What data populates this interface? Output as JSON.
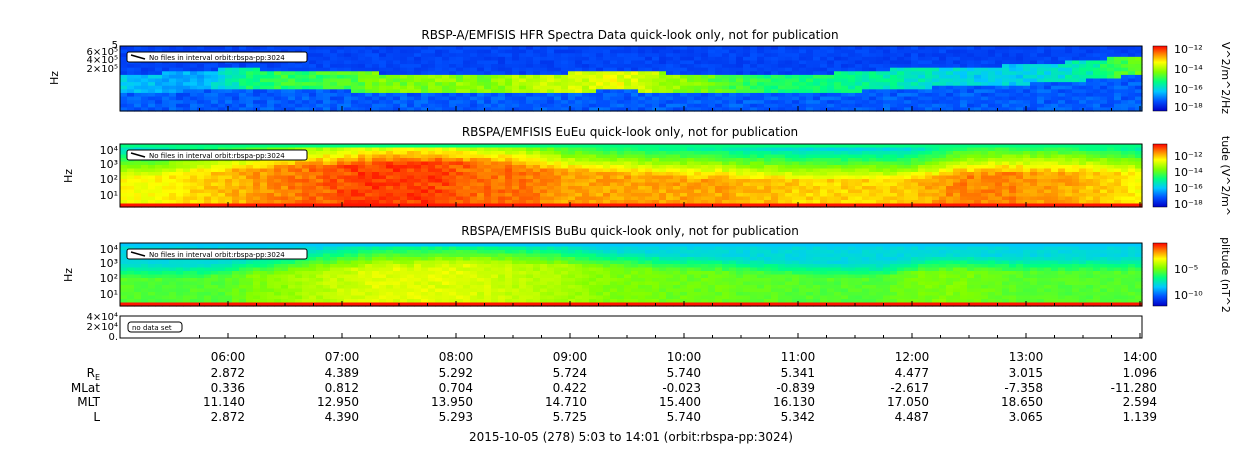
{
  "chart_data": [
    {
      "type": "heatmap",
      "title": "RBSP-A/EMFISIS  HFR Spectra Data quick-look only, not for publication",
      "ylabel": "Hz",
      "yticks": [
        "5",
        "6×10⁵",
        "4×10⁵",
        "2×10⁵"
      ],
      "legend": "No files in interval orbit:rbspa-pp:3024",
      "colorbar_label": "V^2/m^2/Hz",
      "colorbar_ticks": [
        "10⁻¹²",
        "10⁻¹⁴",
        "10⁻¹⁶",
        "10⁻¹⁸"
      ],
      "baseline": [
        0.55,
        0.55,
        0.6,
        0.62,
        0.65,
        0.65,
        0.62,
        0.62,
        0.62,
        0.6,
        0.58,
        0.57,
        0.56,
        0.55,
        0.55,
        0.55,
        0.56,
        0.58,
        0.6,
        0.62,
        0.6,
        0.58,
        0.55,
        0.55,
        0.55,
        0.55,
        0.56,
        0.58,
        0.6,
        0.63,
        0.65,
        0.66,
        0.67,
        0.68,
        0.7,
        0.72,
        0.75,
        0.78,
        0.82,
        0.85
      ],
      "intensity": [
        0.3,
        0.28,
        0.25,
        0.25,
        0.35,
        0.45,
        0.5,
        0.5,
        0.52,
        0.55,
        0.6,
        0.6,
        0.62,
        0.62,
        0.6,
        0.65,
        0.7,
        0.7,
        0.72,
        0.75,
        0.7,
        0.65,
        0.6,
        0.55,
        0.5,
        0.45,
        0.45,
        0.45,
        0.42,
        0.4,
        0.38,
        0.35,
        0.32,
        0.3,
        0.3,
        0.32,
        0.35,
        0.4,
        0.5,
        0.6
      ]
    },
    {
      "type": "heatmap",
      "title": "RBSPA/EMFISIS  EuEu quick-look only, not for publication",
      "ylabel": "Hz",
      "yticks": [
        "10⁴",
        "10³",
        "10²",
        "10¹"
      ],
      "legend": "No files in interval orbit:rbspa-pp:3024",
      "colorbar_label": "tude (V^2/m^",
      "colorbar_ticks": [
        "10⁻¹²",
        "10⁻¹⁴",
        "10⁻¹⁶",
        "10⁻¹⁸"
      ],
      "baseline": [
        0.5,
        0.5,
        0.52,
        0.55,
        0.58,
        0.6,
        0.62,
        0.64,
        0.65,
        0.66,
        0.68,
        0.7,
        0.7,
        0.7,
        0.68,
        0.66,
        0.62,
        0.58,
        0.55,
        0.52,
        0.5,
        0.48,
        0.46,
        0.45,
        0.44,
        0.43,
        0.42,
        0.42,
        0.42,
        0.42,
        0.42,
        0.45,
        0.5,
        0.52,
        0.54,
        0.55,
        0.55,
        0.55,
        0.55,
        0.55
      ],
      "intensity": [
        0.75,
        0.75,
        0.78,
        0.8,
        0.82,
        0.85,
        0.88,
        0.9,
        0.92,
        0.95,
        0.95,
        0.95,
        0.95,
        0.92,
        0.9,
        0.9,
        0.88,
        0.85,
        0.85,
        0.85,
        0.85,
        0.85,
        0.85,
        0.85,
        0.82,
        0.82,
        0.8,
        0.8,
        0.8,
        0.8,
        0.8,
        0.85,
        0.88,
        0.88,
        0.88,
        0.85,
        0.85,
        0.82,
        0.8,
        0.75
      ]
    },
    {
      "type": "heatmap",
      "title": "RBSPA/EMFISIS  BuBu quick-look only, not for publication",
      "ylabel": "Hz",
      "yticks": [
        "10⁴",
        "10³",
        "10²",
        "10¹"
      ],
      "legend": "No files in interval orbit:rbspa-pp:3024",
      "colorbar_label": "plitude (nT^2",
      "colorbar_ticks": [
        "10⁻⁵",
        "10⁻¹⁰"
      ],
      "baseline": [
        0.45,
        0.45,
        0.45,
        0.45,
        0.48,
        0.5,
        0.52,
        0.55,
        0.58,
        0.6,
        0.62,
        0.62,
        0.64,
        0.65,
        0.66,
        0.66,
        0.65,
        0.64,
        0.62,
        0.6,
        0.58,
        0.56,
        0.55,
        0.54,
        0.52,
        0.5,
        0.48,
        0.46,
        0.45,
        0.45,
        0.5,
        0.55,
        0.55,
        0.55,
        0.55,
        0.55,
        0.55,
        0.55,
        0.55,
        0.55
      ],
      "intensity": [
        0.55,
        0.55,
        0.55,
        0.55,
        0.55,
        0.6,
        0.62,
        0.65,
        0.68,
        0.7,
        0.72,
        0.72,
        0.72,
        0.72,
        0.7,
        0.68,
        0.66,
        0.65,
        0.62,
        0.6,
        0.6,
        0.58,
        0.58,
        0.58,
        0.56,
        0.56,
        0.55,
        0.55,
        0.55,
        0.55,
        0.58,
        0.6,
        0.6,
        0.58,
        0.56,
        0.55,
        0.55,
        0.55,
        0.55,
        0.55
      ]
    },
    {
      "type": "line",
      "title": "",
      "ylabel": "",
      "yticks": [
        "4×10⁴",
        "2×10⁴",
        "0."
      ],
      "legend": "no data set",
      "values": []
    }
  ],
  "time_axis": {
    "ticks": [
      "06:00",
      "07:00",
      "08:00",
      "09:00",
      "10:00",
      "11:00",
      "12:00",
      "13:00",
      "14:00"
    ],
    "range": [
      "05:03",
      "14:01"
    ]
  },
  "ephemeris": [
    {
      "label": "R",
      "sub": "E",
      "values": [
        "2.872",
        "4.389",
        "5.292",
        "5.724",
        "5.740",
        "5.341",
        "4.477",
        "3.015",
        "1.096"
      ]
    },
    {
      "label": "MLat",
      "sub": "",
      "values": [
        "0.336",
        "0.812",
        "0.704",
        "0.422",
        "-0.023",
        "-0.839",
        "-2.617",
        "-7.358",
        "-11.280"
      ]
    },
    {
      "label": "MLT",
      "sub": "",
      "values": [
        "11.140",
        "12.950",
        "13.950",
        "14.710",
        "15.400",
        "16.130",
        "17.050",
        "18.650",
        "2.594"
      ]
    },
    {
      "label": "L",
      "sub": "",
      "values": [
        "2.872",
        "4.390",
        "5.293",
        "5.725",
        "5.740",
        "5.342",
        "4.487",
        "3.065",
        "1.139"
      ]
    }
  ],
  "footer": "2015-10-05 (278) 5:03 to 14:01 (orbit:rbspa-pp:3024)"
}
